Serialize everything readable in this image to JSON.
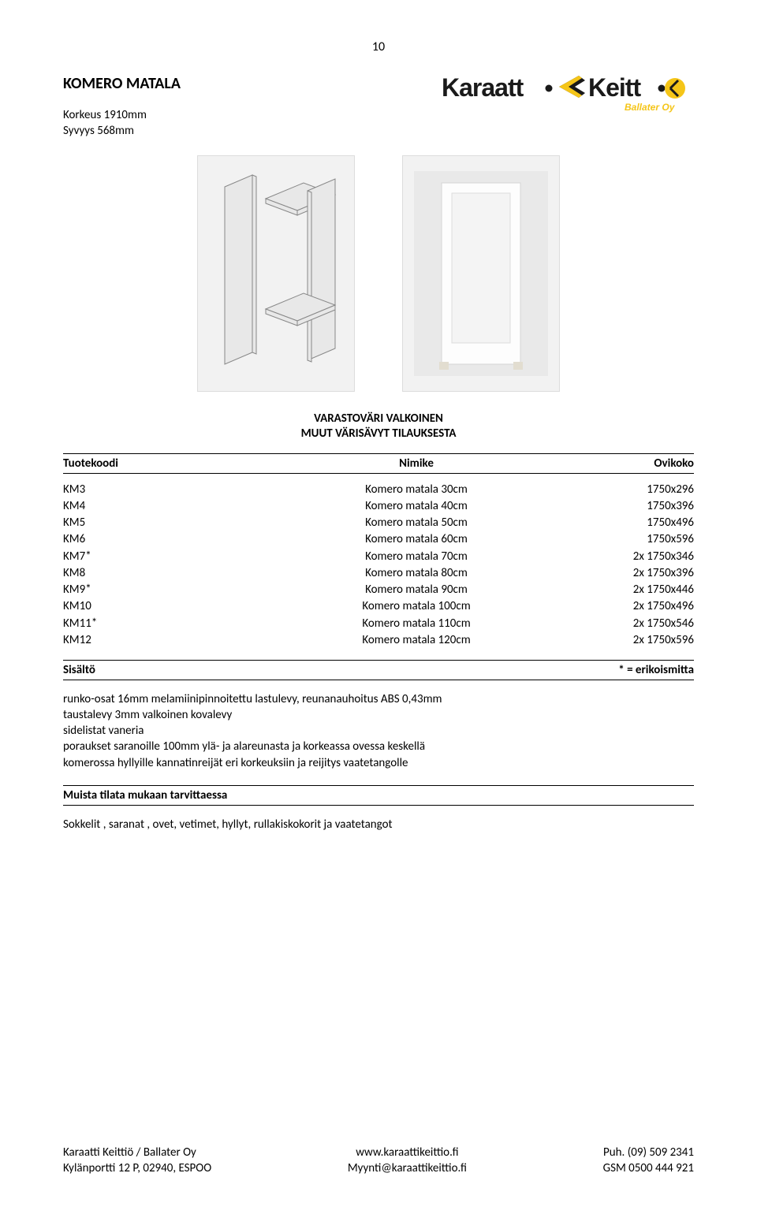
{
  "page_number": "10",
  "title": "KOMERO MATALA",
  "subtitle_line1": "Korkeus 1910mm",
  "subtitle_line2": "Syvyys 568mm",
  "logo": {
    "text_left": "Karaatt",
    "text_right": "Keitt",
    "sub": "Ballater Oy",
    "black": "#1a1a1a",
    "yellow": "#f5c518"
  },
  "caption_line1": "VARASTOVÄRI VALKOINEN",
  "caption_line2": "MUUT VÄRISÄVYT TILAUKSESTA",
  "table": {
    "headers": {
      "c1": "Tuotekoodi",
      "c2": "Nimike",
      "c3": "Ovikoko"
    },
    "rows": [
      {
        "c1": "KM3",
        "c2": "Komero matala 30cm",
        "c3": "1750x296"
      },
      {
        "c1": "KM4",
        "c2": "Komero matala 40cm",
        "c3": "1750x396"
      },
      {
        "c1": "KM5",
        "c2": "Komero matala 50cm",
        "c3": "1750x496"
      },
      {
        "c1": "KM6",
        "c2": "Komero matala 60cm",
        "c3": "1750x596"
      },
      {
        "c1": "KM7*",
        "c2": "Komero matala 70cm",
        "c3": "2x 1750x346"
      },
      {
        "c1": "KM8",
        "c2": "Komero matala 80cm",
        "c3": "2x 1750x396"
      },
      {
        "c1": "KM9*",
        "c2": "Komero matala 90cm",
        "c3": "2x 1750x446"
      },
      {
        "c1": "KM10",
        "c2": "Komero matala 100cm",
        "c3": "2x 1750x496"
      },
      {
        "c1": "KM11*",
        "c2": "Komero matala 110cm",
        "c3": "2x 1750x546"
      },
      {
        "c1": "KM12",
        "c2": "Komero matala 120cm",
        "c3": "2x 1750x596"
      }
    ]
  },
  "section_label": "Sisältö",
  "section_note": "* = erikoismitta",
  "body": [
    "runko-osat 16mm melamiinipinnoitettu lastulevy, reunanauhoitus ABS 0,43mm",
    "taustalevy 3mm valkoinen kovalevy",
    "sidelistat vaneria",
    "poraukset saranoille 100mm ylä- ja alareunasta ja korkeassa ovessa keskellä",
    "komerossa hyllyille kannatinreijät eri korkeuksiin ja reijitys vaatetangolle"
  ],
  "reminder_heading": "Muista tilata mukaan tarvittaessa",
  "reminder_text": "Sokkelit , saranat , ovet, vetimet, hyllyt, rullakiskokorit ja vaatetangot",
  "footer": {
    "left1": "Karaatti Keittiö / Ballater Oy",
    "left2": "Kylänportti 12 P, 02940, ESPOO",
    "center1": "www.karaattikeittio.fi",
    "center2": "Myynti@karaattikeittio.fi",
    "right1": "Puh. (09) 509 2341",
    "right2": "GSM 0500 444 921"
  },
  "colors": {
    "text": "#000000",
    "bg": "#ffffff",
    "img_bg": "#f2f2f2",
    "img_border": "#dddddd"
  }
}
